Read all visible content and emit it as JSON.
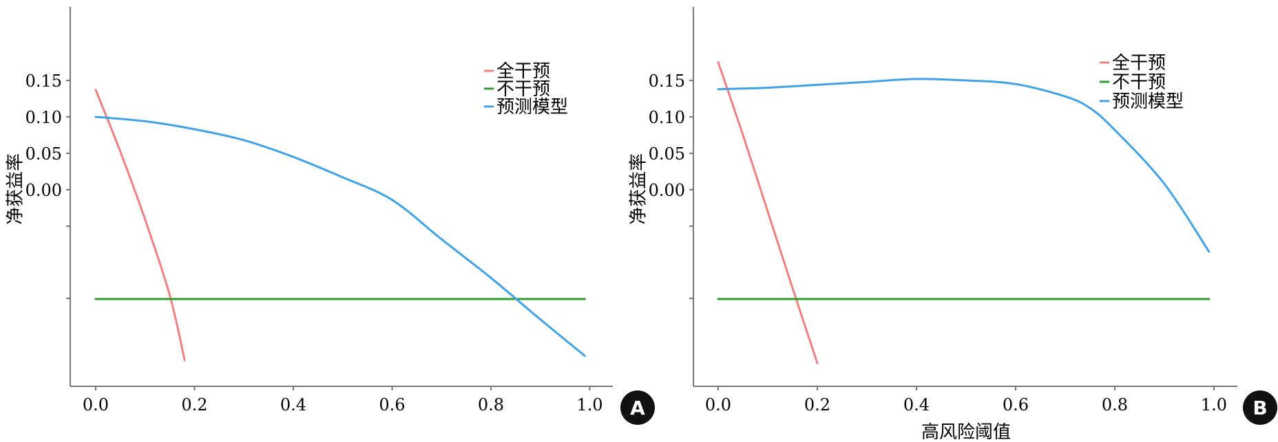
{
  "colors": {
    "all": "#f08080",
    "none": "#2f9b2f",
    "model": "#3fa2e8",
    "axis": "#777777",
    "badge": "#111111"
  },
  "chart_data": [
    {
      "panel": "A",
      "type": "line",
      "ylabel": "净获益率",
      "xlabel": "",
      "x_ticks": [
        "0.0",
        "0.2",
        "0.4",
        "0.6",
        "0.8",
        "1.0"
      ],
      "y_ticks": [
        "0.15",
        "0.10",
        "0.05",
        "0.00"
      ],
      "legend": {
        "position": "top-right",
        "entries": [
          "全干预",
          "不干预",
          "预测模型"
        ]
      },
      "series": [
        {
          "name": "全干预",
          "color_key": "all",
          "x": [
            0.0,
            0.05,
            0.1,
            0.15,
            0.18
          ],
          "y": [
            0.137,
            0.052,
            -0.041,
            -0.145,
            -0.234
          ]
        },
        {
          "name": "不干预",
          "color_key": "none",
          "x": [
            0.0,
            0.99
          ],
          "y": [
            -0.15,
            -0.15
          ]
        },
        {
          "name": "预测模型",
          "color_key": "model",
          "x": [
            0.0,
            0.1,
            0.2,
            0.3,
            0.4,
            0.5,
            0.6,
            0.7,
            0.8,
            0.9,
            0.99
          ],
          "y": [
            0.1,
            0.094,
            0.083,
            0.068,
            0.045,
            0.017,
            -0.014,
            -0.068,
            -0.121,
            -0.178,
            -0.228
          ]
        }
      ]
    },
    {
      "panel": "B",
      "type": "line",
      "ylabel": "净获益率",
      "xlabel": "高风险阈值",
      "x_ticks": [
        "0.0",
        "0.2",
        "0.4",
        "0.6",
        "0.8",
        "1.0"
      ],
      "y_ticks": [
        "0.15",
        "0.10",
        "0.05",
        "0.00"
      ],
      "legend": {
        "position": "top-right",
        "entries": [
          "全干预",
          "不干预",
          "预测模型"
        ]
      },
      "series": [
        {
          "name": "全干预",
          "color_key": "all",
          "x": [
            0.0,
            0.05,
            0.1,
            0.15,
            0.2
          ],
          "y": [
            0.175,
            0.075,
            -0.03,
            -0.135,
            -0.238
          ]
        },
        {
          "name": "不干预",
          "color_key": "none",
          "x": [
            0.0,
            0.99
          ],
          "y": [
            -0.15,
            -0.15
          ]
        },
        {
          "name": "预测模型",
          "color_key": "model",
          "x": [
            0.0,
            0.1,
            0.2,
            0.3,
            0.4,
            0.5,
            0.6,
            0.7,
            0.75,
            0.8,
            0.9,
            0.99
          ],
          "y": [
            0.138,
            0.14,
            0.144,
            0.148,
            0.152,
            0.15,
            0.145,
            0.128,
            0.112,
            0.082,
            0.008,
            -0.085
          ]
        }
      ]
    }
  ]
}
